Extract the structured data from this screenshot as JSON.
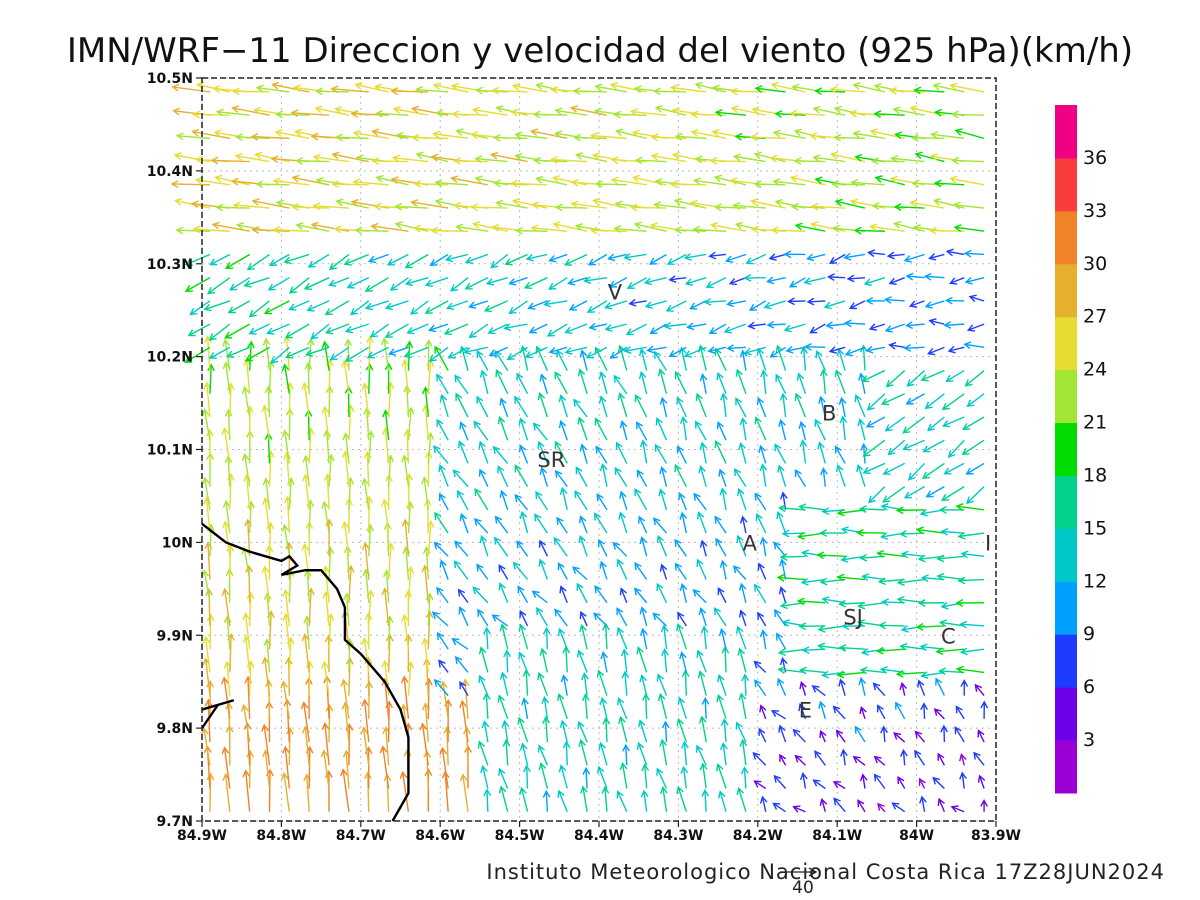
{
  "title": "IMN/WRF−11 Direccion y velocidad del viento (925 hPa)(km/h)",
  "footer": "Instituto Meteorologico Nacional Costa Rica  17Z28JUN2024",
  "reference_vector": {
    "label": "40",
    "speed": 40
  },
  "lon_ticks": [
    {
      "value": -84.9,
      "label": "84.9W"
    },
    {
      "value": -84.8,
      "label": "84.8W"
    },
    {
      "value": -84.7,
      "label": "84.7W"
    },
    {
      "value": -84.6,
      "label": "84.6W"
    },
    {
      "value": -84.5,
      "label": "84.5W"
    },
    {
      "value": -84.4,
      "label": "84.4W"
    },
    {
      "value": -84.3,
      "label": "84.3W"
    },
    {
      "value": -84.2,
      "label": "84.2W"
    },
    {
      "value": -84.1,
      "label": "84.1W"
    },
    {
      "value": -84.0,
      "label": "84W"
    },
    {
      "value": -83.9,
      "label": "83.9W"
    }
  ],
  "lat_ticks": [
    {
      "value": 10.5,
      "label": "10.5N"
    },
    {
      "value": 10.4,
      "label": "10.4N"
    },
    {
      "value": 10.3,
      "label": "10.3N"
    },
    {
      "value": 10.2,
      "label": "10.2N"
    },
    {
      "value": 10.1,
      "label": "10.1N"
    },
    {
      "value": 10.0,
      "label": "10N"
    },
    {
      "value": 9.9,
      "label": "9.9N"
    },
    {
      "value": 9.8,
      "label": "9.8N"
    },
    {
      "value": 9.7,
      "label": "9.7N"
    }
  ],
  "extent": {
    "lon": [
      -84.9,
      -83.9
    ],
    "lat": [
      9.7,
      10.5
    ]
  },
  "legend": {
    "colors": [
      "#9b00d7",
      "#6d00e8",
      "#1e3cff",
      "#00a0ff",
      "#00c8c8",
      "#00d28c",
      "#00dc00",
      "#a0e632",
      "#e6dc32",
      "#e6af2d",
      "#f08228",
      "#fa3c3c",
      "#f00082"
    ],
    "labels": [
      "3",
      "6",
      "9",
      "12",
      "15",
      "18",
      "21",
      "24",
      "27",
      "30",
      "33",
      "36"
    ]
  },
  "places": [
    {
      "label": "V",
      "lon": -84.38,
      "lat": 10.27
    },
    {
      "label": "B",
      "lon": -84.11,
      "lat": 10.14
    },
    {
      "label": "SR",
      "lon": -84.46,
      "lat": 10.09
    },
    {
      "label": "A",
      "lon": -84.21,
      "lat": 10.0
    },
    {
      "label": "I",
      "lon": -83.91,
      "lat": 10.0
    },
    {
      "label": "SJ",
      "lon": -84.08,
      "lat": 9.92
    },
    {
      "label": "C",
      "lon": -83.96,
      "lat": 9.9
    },
    {
      "label": "E",
      "lon": -84.14,
      "lat": 9.82
    }
  ],
  "coastline": [
    [
      -84.9,
      10.02
    ],
    [
      -84.87,
      10.0
    ],
    [
      -84.84,
      9.99
    ],
    [
      -84.8,
      9.98
    ],
    [
      -84.79,
      9.985
    ],
    [
      -84.78,
      9.975
    ],
    [
      -84.8,
      9.965
    ],
    [
      -84.77,
      9.97
    ],
    [
      -84.75,
      9.97
    ],
    [
      -84.73,
      9.95
    ],
    [
      -84.72,
      9.93
    ],
    [
      -84.72,
      9.895
    ],
    [
      -84.7,
      9.88
    ],
    [
      -84.67,
      9.85
    ],
    [
      -84.65,
      9.82
    ],
    [
      -84.64,
      9.79
    ],
    [
      -84.64,
      9.73
    ],
    [
      -84.66,
      9.7
    ]
  ],
  "coastline_south": [
    [
      -84.9,
      9.8
    ],
    [
      -84.88,
      9.825
    ],
    [
      -84.86,
      9.83
    ],
    [
      -84.9,
      9.82
    ]
  ]
}
